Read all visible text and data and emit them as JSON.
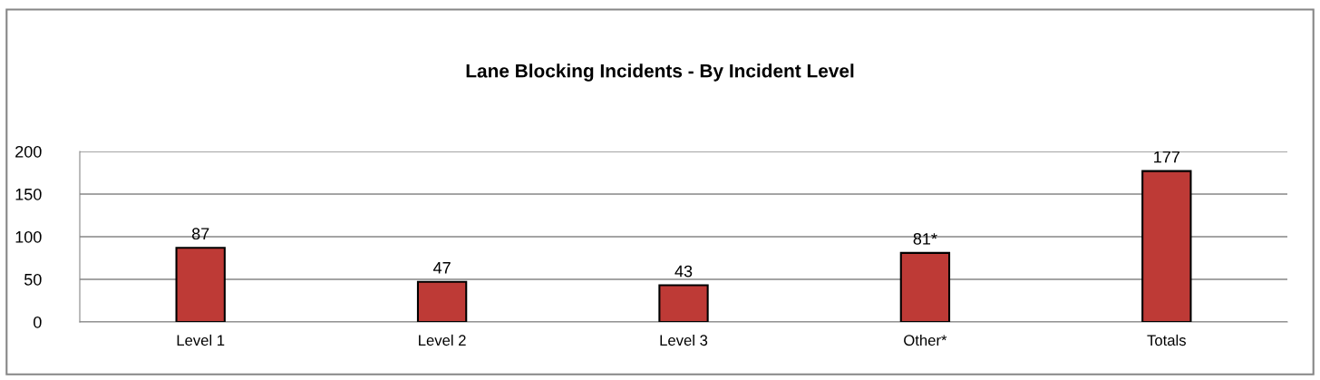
{
  "chart_data": {
    "type": "bar",
    "title": "Lane Blocking Incidents - By Incident Level",
    "categories": [
      "Level 1",
      "Level 2",
      "Level 3",
      "Other*",
      "Totals"
    ],
    "values": [
      87,
      47,
      43,
      81,
      177
    ],
    "value_labels": [
      "87",
      "47",
      "43",
      "81*",
      "177"
    ],
    "color": "#be3a36",
    "ylim": [
      0,
      200
    ],
    "yticks": [
      0,
      50,
      100,
      150,
      200
    ],
    "grid": "y"
  }
}
